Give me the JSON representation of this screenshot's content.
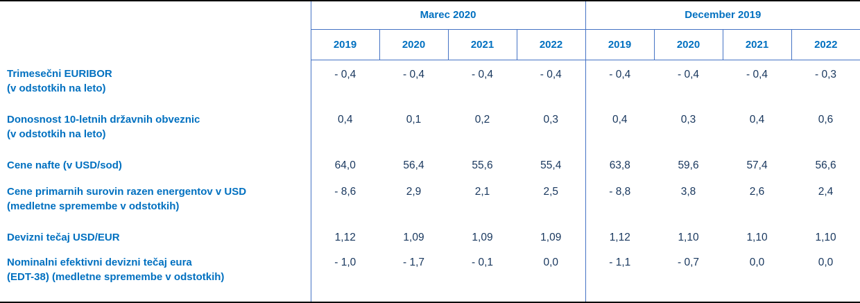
{
  "table": {
    "group_headers": [
      "Marec 2020",
      "December 2019"
    ],
    "year_headers": [
      "2019",
      "2020",
      "2021",
      "2022",
      "2019",
      "2020",
      "2021",
      "2022"
    ],
    "rows": [
      {
        "label1": "Trimesečni EURIBOR",
        "label2": "(v odstotkih na leto)",
        "values": [
          "- 0,4",
          "- 0,4",
          "- 0,4",
          "- 0,4",
          "- 0,4",
          "- 0,4",
          "- 0,4",
          "- 0,3"
        ]
      },
      {
        "label1": "Donosnost 10-letnih državnih obveznic",
        "label2": "(v odstotkih na leto)",
        "values": [
          "0,4",
          "0,1",
          "0,2",
          "0,3",
          "0,4",
          "0,3",
          "0,4",
          "0,6"
        ]
      },
      {
        "label1": "Cene nafte (v USD/sod)",
        "label2": "",
        "values": [
          "64,0",
          "56,4",
          "55,6",
          "55,4",
          "63,8",
          "59,6",
          "57,4",
          "56,6"
        ]
      },
      {
        "label1": "Cene primarnih surovin razen energentov v USD",
        "label2": "(medletne spremembe v odstotkih)",
        "values": [
          "- 8,6",
          "2,9",
          "2,1",
          "2,5",
          "- 8,8",
          "3,8",
          "2,6",
          "2,4"
        ]
      },
      {
        "label1": "Devizni tečaj USD/EUR",
        "label2": "",
        "values": [
          "1,12",
          "1,09",
          "1,09",
          "1,09",
          "1,12",
          "1,10",
          "1,10",
          "1,10"
        ]
      },
      {
        "label1": "Nominalni efektivni devizni tečaj eura",
        "label2": "(EDT-38) (medletne spremembe v odstotkih)",
        "values": [
          "- 1,0",
          "- 1,7",
          "- 0,1",
          "0,0",
          "- 1,1",
          "- 0,7",
          "0,0",
          "0,0"
        ]
      }
    ]
  },
  "colors": {
    "header_text": "#0070C0",
    "label_text": "#0070C0",
    "value_text": "#17365D",
    "grid_line": "#4472C4",
    "frame_line": "#000000"
  }
}
